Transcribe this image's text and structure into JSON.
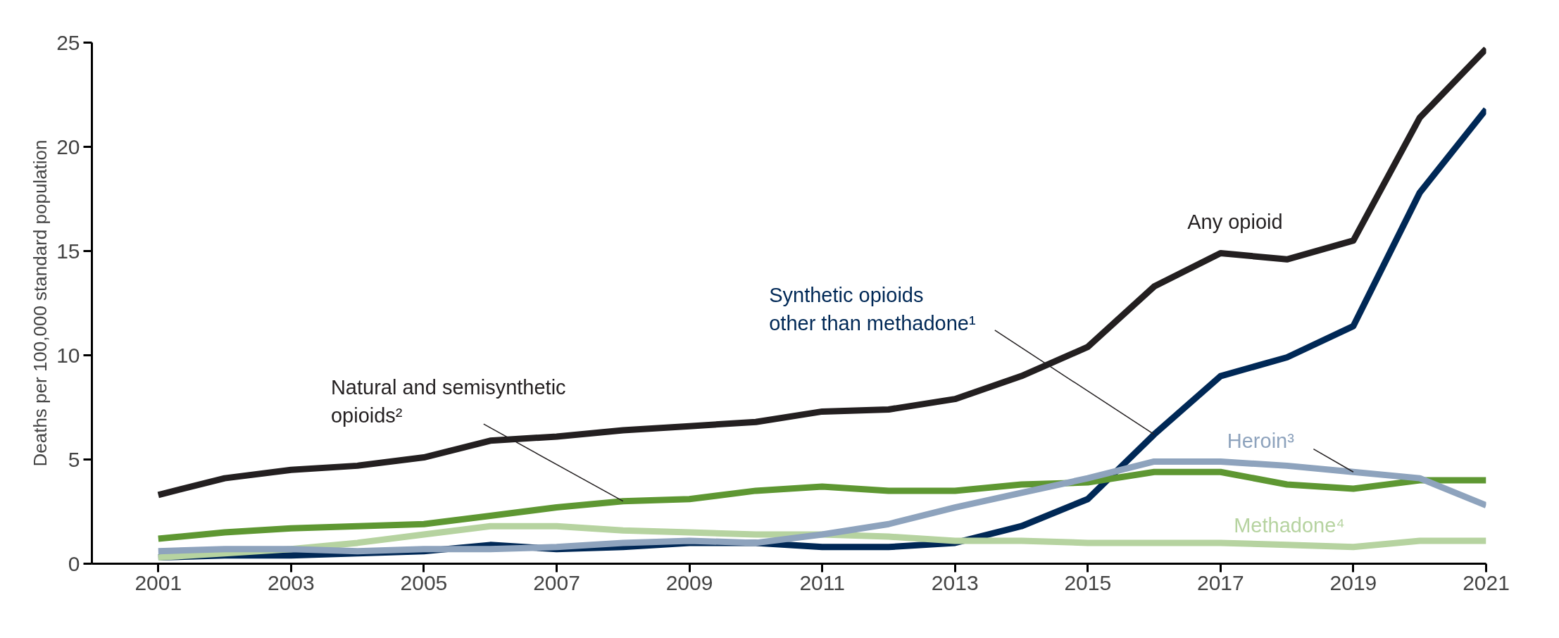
{
  "chart_data": {
    "type": "line",
    "ylabel": "Deaths per 100,000 standard population",
    "x": [
      2001,
      2002,
      2003,
      2004,
      2005,
      2006,
      2007,
      2008,
      2009,
      2010,
      2011,
      2012,
      2013,
      2014,
      2015,
      2016,
      2017,
      2018,
      2019,
      2020,
      2021
    ],
    "series": [
      {
        "name": "Any opioid",
        "color": "#231f20",
        "values": [
          3.3,
          4.1,
          4.5,
          4.7,
          5.1,
          5.9,
          6.1,
          6.4,
          6.6,
          6.8,
          7.3,
          7.4,
          7.9,
          9.0,
          10.4,
          13.3,
          14.9,
          14.6,
          15.5,
          21.4,
          24.7
        ]
      },
      {
        "name": "Synthetic opioids\nother than methadone¹",
        "color": "#002856",
        "values": [
          0.3,
          0.4,
          0.4,
          0.5,
          0.6,
          0.9,
          0.7,
          0.8,
          1.0,
          1.0,
          0.8,
          0.8,
          1.0,
          1.8,
          3.1,
          6.2,
          9.0,
          9.9,
          11.4,
          17.8,
          21.8
        ]
      },
      {
        "name": "Natural and semisynthetic\nopioids²",
        "color": "#5e9732",
        "values": [
          1.2,
          1.5,
          1.7,
          1.8,
          1.9,
          2.3,
          2.7,
          3.0,
          3.1,
          3.5,
          3.7,
          3.5,
          3.5,
          3.8,
          3.9,
          4.4,
          4.4,
          3.8,
          3.6,
          4.0,
          4.0
        ]
      },
      {
        "name": "Methadone⁴",
        "color": "#b6d3a0",
        "values": [
          0.3,
          0.5,
          0.7,
          1.0,
          1.4,
          1.8,
          1.8,
          1.6,
          1.5,
          1.4,
          1.4,
          1.3,
          1.1,
          1.1,
          1.0,
          1.0,
          1.0,
          0.9,
          0.8,
          1.1,
          1.1
        ]
      },
      {
        "name": "Heroin³",
        "color": "#8ea3bd",
        "values": [
          0.6,
          0.7,
          0.7,
          0.6,
          0.7,
          0.7,
          0.8,
          1.0,
          1.1,
          1.0,
          1.4,
          1.9,
          2.7,
          3.4,
          4.1,
          4.9,
          4.9,
          4.7,
          4.4,
          4.1,
          2.8
        ]
      }
    ],
    "xlim": [
      2000,
      2021
    ],
    "xticks": [
      2001,
      2003,
      2005,
      2007,
      2009,
      2011,
      2013,
      2015,
      2017,
      2019,
      2021
    ],
    "ylim": [
      0,
      25
    ],
    "yticks": [
      0,
      5,
      10,
      15,
      20,
      25
    ],
    "grid": false,
    "marker": "none",
    "line_style": "solid"
  }
}
